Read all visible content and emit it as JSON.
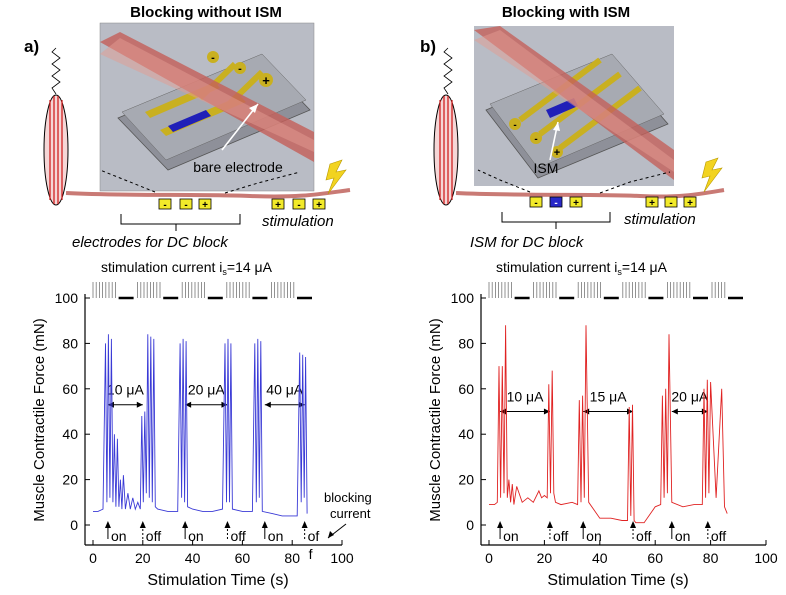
{
  "panels": [
    {
      "id": "a",
      "panel_label": "a)",
      "title": "Blocking without ISM",
      "callout": "bare electrode",
      "electrode_caption": "electrodes for DC block",
      "stim_label": "stimulation",
      "pad_signs": [
        "-",
        "-",
        "+"
      ],
      "stim_signs": [
        "+",
        "-",
        "+"
      ],
      "stim_current_label": "stimulation current i",
      "stim_current_sub": "s",
      "stim_current_value": "=14 μA",
      "blocking_label_1": "blocking",
      "blocking_label_2": "current",
      "block_events": [
        {
          "label": "10 μA",
          "on": 6,
          "off": 20
        },
        {
          "label": "20 μA",
          "on": 37,
          "off": 54
        },
        {
          "label": "40 μA",
          "on": 69,
          "off": 85
        }
      ],
      "event_labels": [
        "on",
        "off",
        "on",
        "off",
        "on",
        "of",
        "f"
      ],
      "color": "#3a3ad6"
    },
    {
      "id": "b",
      "panel_label": "b)",
      "title": "Blocking with ISM",
      "callout": "ISM",
      "electrode_caption": "ISM for DC block",
      "stim_label": "stimulation",
      "pad_signs": [
        "-",
        "-",
        "+"
      ],
      "stim_signs": [
        "+",
        "-",
        "+"
      ],
      "stim_current_label": "stimulation current i",
      "stim_current_sub": "s",
      "stim_current_value": "=14 μA",
      "block_events": [
        {
          "label": "10 μA",
          "on": 4,
          "off": 22
        },
        {
          "label": "15 μA",
          "on": 34,
          "off": 52
        },
        {
          "label": "20 μA",
          "on": 66,
          "off": 79
        }
      ],
      "event_labels": [
        "on",
        "off",
        "on",
        "off",
        "on",
        "off"
      ],
      "color": "#e02222"
    }
  ],
  "chart_data": [
    {
      "type": "line",
      "panel": "a",
      "xlabel": "Stimulation Time  (s)",
      "ylabel": "Muscle Contractile Force  (mN)",
      "xlim": [
        0,
        100
      ],
      "ylim": [
        0,
        100
      ],
      "xticks": [
        0,
        20,
        40,
        60,
        80,
        100
      ],
      "yticks": [
        0,
        20,
        40,
        60,
        80,
        100
      ],
      "series": [
        {
          "x": [
            0,
            2,
            4,
            5,
            5.6,
            6.2,
            6.8,
            7.4,
            8,
            8.6,
            9.2,
            9.8,
            10.4,
            11,
            11.6,
            12.2,
            13,
            14,
            15,
            16,
            17,
            18,
            19,
            19.6,
            20.2,
            20.8,
            21.4,
            22,
            22.6,
            23.2,
            23.8,
            24.4,
            25,
            26,
            30,
            34,
            35,
            35.6,
            36.2,
            36.8,
            37.4,
            38,
            40,
            44,
            48,
            52,
            53,
            53.6,
            54.2,
            54.8,
            55.4,
            56,
            60,
            64,
            65,
            65.6,
            66.2,
            66.8,
            67.4,
            68,
            72,
            76,
            80,
            82,
            83,
            83.6,
            84.2,
            84.8,
            85.4,
            86
          ],
          "y": [
            6,
            6,
            7,
            80,
            10,
            84,
            12,
            82,
            10,
            40,
            8,
            38,
            8,
            20,
            7,
            22,
            7,
            14,
            7,
            12,
            7,
            10,
            7,
            48,
            10,
            50,
            14,
            84,
            12,
            83,
            10,
            82,
            8,
            7,
            6,
            6,
            80,
            12,
            82,
            10,
            81,
            8,
            7,
            6,
            6,
            7,
            80,
            10,
            82,
            10,
            80,
            7,
            6,
            6,
            80,
            10,
            82,
            12,
            81,
            6,
            5,
            4,
            4,
            4,
            76,
            10,
            75,
            12,
            74,
            5
          ],
          "series_kind": "force_trace"
        }
      ]
    },
    {
      "type": "line",
      "panel": "b",
      "xlabel": "Stimulation Time  (s)",
      "ylabel": "Muscle Contractile Force  (mN)",
      "xlim": [
        0,
        100
      ],
      "ylim": [
        0,
        100
      ],
      "xticks": [
        0,
        20,
        40,
        60,
        80,
        100
      ],
      "yticks": [
        0,
        20,
        40,
        60,
        80,
        100
      ],
      "series": [
        {
          "x": [
            0,
            2,
            3,
            3.6,
            4.2,
            4.8,
            5.4,
            6,
            6.6,
            7.2,
            7.8,
            8.4,
            9,
            10,
            12,
            14,
            16,
            18,
            19,
            20,
            21,
            21.6,
            22.2,
            22.8,
            23.4,
            24,
            26,
            30,
            32,
            32.6,
            33.2,
            33.8,
            34.4,
            35,
            36,
            40,
            44,
            48,
            50,
            50.6,
            51.2,
            51.8,
            52.4,
            53,
            56,
            60,
            62,
            62.6,
            63.2,
            63.8,
            64.4,
            65,
            66,
            70,
            74,
            76,
            77,
            77.6,
            78.2,
            78.8,
            79.4,
            80,
            82,
            84,
            85,
            86
          ],
          "y": [
            9,
            9,
            10,
            70,
            12,
            70,
            14,
            88,
            12,
            20,
            10,
            18,
            9,
            17,
            10,
            12,
            10,
            15,
            12,
            13,
            12,
            62,
            14,
            68,
            14,
            10,
            9,
            10,
            9,
            55,
            10,
            57,
            12,
            88,
            10,
            3,
            3,
            2,
            2,
            52,
            4,
            53,
            2,
            1,
            1,
            8,
            9,
            57,
            12,
            60,
            14,
            84,
            10,
            8,
            9,
            9,
            9,
            60,
            12,
            64,
            14,
            63,
            12,
            60,
            8,
            5
          ],
          "series_kind": "force_trace"
        }
      ]
    }
  ]
}
